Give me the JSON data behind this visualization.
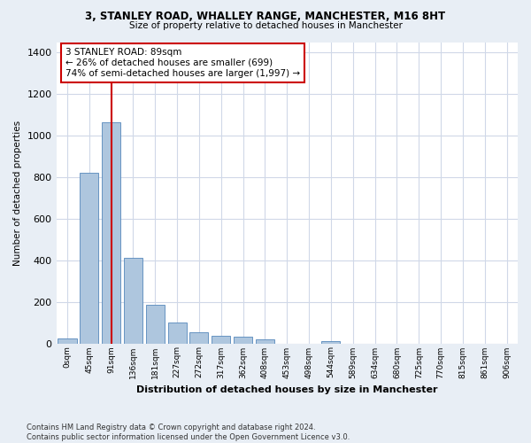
{
  "title_line1": "3, STANLEY ROAD, WHALLEY RANGE, MANCHESTER, M16 8HT",
  "title_line2": "Size of property relative to detached houses in Manchester",
  "xlabel": "Distribution of detached houses by size in Manchester",
  "ylabel": "Number of detached properties",
  "bar_labels": [
    "0sqm",
    "45sqm",
    "91sqm",
    "136sqm",
    "181sqm",
    "227sqm",
    "272sqm",
    "317sqm",
    "362sqm",
    "408sqm",
    "453sqm",
    "498sqm",
    "544sqm",
    "589sqm",
    "634sqm",
    "680sqm",
    "725sqm",
    "770sqm",
    "815sqm",
    "861sqm",
    "906sqm"
  ],
  "bar_values": [
    22,
    820,
    1065,
    410,
    185,
    100,
    55,
    35,
    30,
    20,
    0,
    0,
    12,
    0,
    0,
    0,
    0,
    0,
    0,
    0,
    0
  ],
  "bar_color": "#aec6de",
  "bar_edge_color": "#5588bb",
  "annotation_text": "3 STANLEY ROAD: 89sqm\n← 26% of detached houses are smaller (699)\n74% of semi-detached houses are larger (1,997) →",
  "annotation_box_color": "#ffffff",
  "annotation_box_edge": "#cc0000",
  "vline_color": "#cc0000",
  "vline_x_index": 2,
  "ylim": [
    0,
    1450
  ],
  "yticks": [
    0,
    200,
    400,
    600,
    800,
    1000,
    1200,
    1400
  ],
  "fig_background_color": "#e8eef5",
  "plot_background_color": "#ffffff",
  "grid_color": "#d0d8e8",
  "footnote": "Contains HM Land Registry data © Crown copyright and database right 2024.\nContains public sector information licensed under the Open Government Licence v3.0."
}
